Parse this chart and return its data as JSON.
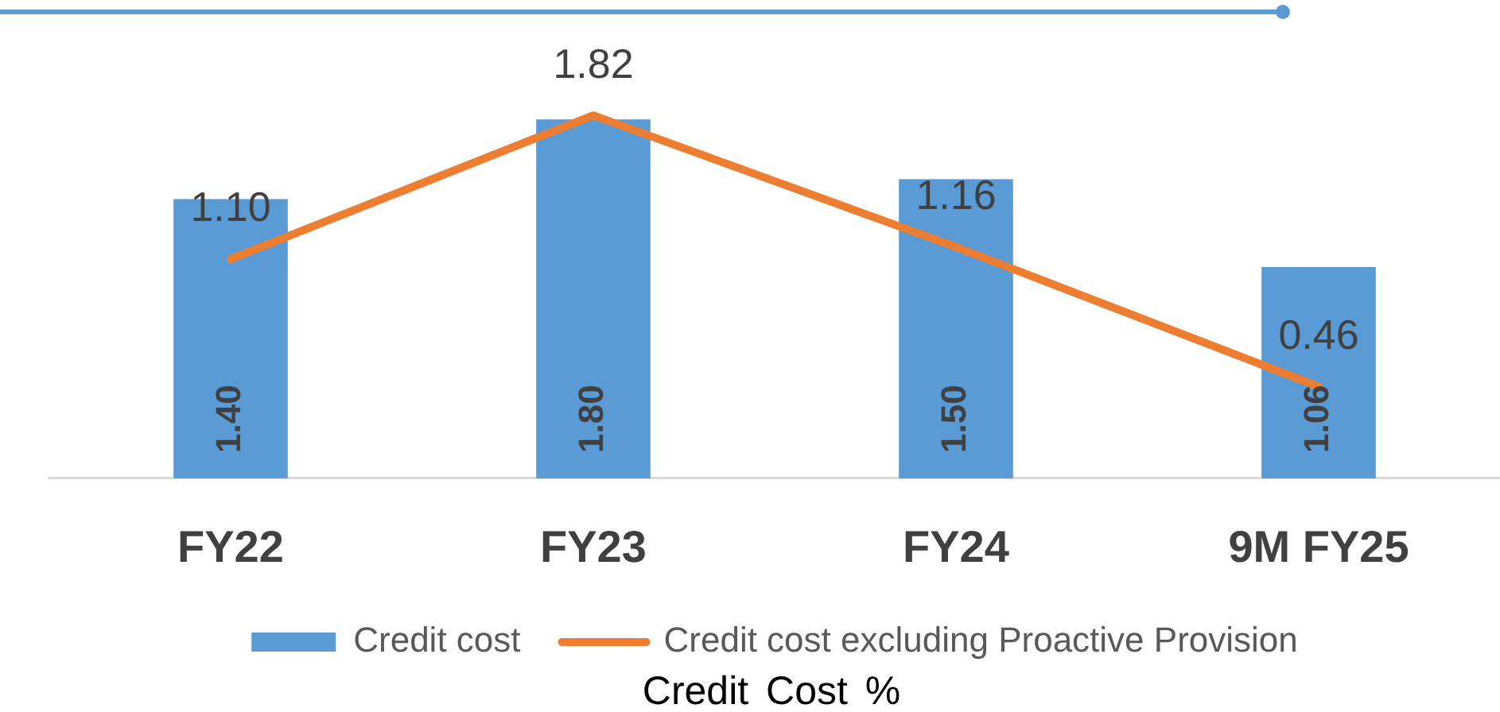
{
  "chart_data": {
    "type": "bar",
    "title": "Credit Cost %",
    "categories": [
      "FY22",
      "FY23",
      "FY24",
      "9M FY25"
    ],
    "series": [
      {
        "name": "Credit cost",
        "color": "#5b9bd5",
        "values": [
          1.4,
          1.8,
          1.5,
          1.06
        ],
        "value_labels": [
          "1.40",
          "1.80",
          "1.50",
          "1.06"
        ]
      },
      {
        "name": "Credit cost excluding Proactive Provision",
        "type": "line",
        "color": "#ed7d31",
        "values": [
          1.1,
          1.82,
          1.16,
          0.46
        ],
        "value_labels": [
          "1.10",
          "1.82",
          "1.16",
          "0.46"
        ]
      }
    ],
    "tick_labels": "x",
    "legend": "bottom"
  }
}
